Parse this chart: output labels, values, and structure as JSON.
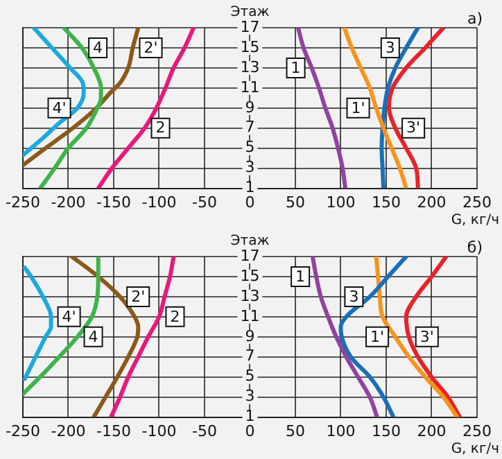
{
  "chart_data": [
    {
      "type": "line",
      "title": "а)",
      "xlabel": "G, кг/ч",
      "ylabel": "Этаж",
      "xlim": [
        -250,
        250
      ],
      "ylim": [
        1,
        17
      ],
      "xticks": [
        -250,
        -200,
        -150,
        -100,
        -50,
        0,
        50,
        100,
        150,
        200,
        250
      ],
      "yticks": [
        1,
        3,
        5,
        7,
        9,
        11,
        13,
        15,
        17
      ],
      "grid": true,
      "legend": false,
      "marker": "none",
      "line_style": "solid",
      "series": [
        {
          "name": "4'",
          "color": "#1ea8e0",
          "x": [
            -238,
            -218,
            -198,
            -184,
            -183,
            -190,
            -210,
            -228,
            -250
          ],
          "values": [
            17,
            15,
            13,
            11.5,
            10.5,
            9,
            7.5,
            6,
            4.3
          ]
        },
        {
          "name": "4",
          "color": "#3cb44a",
          "x": [
            -205,
            -185,
            -172,
            -164,
            -164,
            -168,
            -180,
            -200,
            -215,
            -231
          ],
          "values": [
            17,
            15,
            13,
            11,
            10,
            9,
            7,
            5,
            3,
            1
          ]
        },
        {
          "name": "2'",
          "color": "#8b5a1a",
          "x": [
            -123,
            -129,
            -134,
            -143,
            -154,
            -169,
            -195,
            -225,
            -250
          ],
          "values": [
            17,
            15,
            13,
            11.5,
            10.5,
            9,
            7,
            5,
            3.3
          ]
        },
        {
          "name": "2",
          "color": "#e8197d",
          "x": [
            -62,
            -72,
            -84,
            -93,
            -103,
            -116,
            -134,
            -152,
            -167
          ],
          "values": [
            17,
            15,
            13,
            11,
            9,
            7,
            5,
            3,
            1
          ]
        },
        {
          "name": "1",
          "color": "#8e44a0",
          "x": [
            53,
            59,
            68,
            76,
            83,
            91,
            97,
            102,
            105
          ],
          "values": [
            17,
            15,
            13,
            11,
            9,
            7,
            5,
            3,
            1
          ]
        },
        {
          "name": "1'",
          "color": "#f7941d",
          "x": [
            104,
            112,
            122,
            132,
            139,
            147,
            156,
            165,
            172
          ],
          "values": [
            17,
            15,
            13,
            11,
            9,
            7,
            5,
            3,
            1
          ]
        },
        {
          "name": "3",
          "color": "#1a6fb8",
          "x": [
            185,
            172,
            160,
            152,
            148,
            146,
            145,
            146,
            147
          ],
          "values": [
            17,
            15,
            13,
            11,
            9,
            7,
            5,
            3,
            1
          ]
        },
        {
          "name": "3'",
          "color": "#e8232a",
          "x": [
            213,
            193,
            172,
            157,
            153,
            160,
            172,
            183,
            185
          ],
          "values": [
            17,
            15,
            13,
            11,
            9,
            7,
            5,
            3,
            1
          ]
        }
      ]
    },
    {
      "type": "line",
      "title": "б)",
      "xlabel": "G, кг/ч",
      "ylabel": "Этаж",
      "xlim": [
        -250,
        250
      ],
      "ylim": [
        1,
        17
      ],
      "xticks": [
        -250,
        -200,
        -150,
        -100,
        -50,
        0,
        50,
        100,
        150,
        200,
        250
      ],
      "yticks": [
        1,
        3,
        5,
        7,
        9,
        11,
        13,
        15,
        17
      ],
      "grid": true,
      "legend": false,
      "marker": "none",
      "line_style": "solid",
      "series": [
        {
          "name": "4'",
          "color": "#1ea8e0",
          "x": [
            -248,
            -241,
            -228,
            -219,
            -219,
            -225,
            -236,
            -248
          ],
          "values": [
            15.9,
            15,
            13,
            11,
            10,
            9,
            7,
            4.8
          ]
        },
        {
          "name": "4",
          "color": "#3cb44a",
          "x": [
            -167,
            -167,
            -168,
            -174,
            -190,
            -210,
            -231,
            -250
          ],
          "values": [
            16.8,
            15,
            13,
            11,
            9,
            7,
            5,
            3.3
          ]
        },
        {
          "name": "2'",
          "color": "#8b5a1a",
          "x": [
            -196,
            -167,
            -143,
            -127,
            -123,
            -124,
            -134,
            -146,
            -159,
            -172
          ],
          "values": [
            17,
            15,
            13,
            11,
            10,
            9,
            7,
            5,
            3,
            1
          ]
        },
        {
          "name": "2",
          "color": "#e8197d",
          "x": [
            -84,
            -88,
            -94,
            -100,
            -112,
            -123,
            -134,
            -143,
            -153
          ],
          "values": [
            17,
            15,
            13,
            11,
            9,
            7,
            5,
            3,
            1
          ]
        },
        {
          "name": "1",
          "color": "#8e44a0",
          "x": [
            69,
            73,
            78,
            86,
            95,
            106,
            119,
            132,
            140
          ],
          "values": [
            17,
            15,
            13,
            11,
            9,
            7,
            5,
            3,
            1
          ]
        },
        {
          "name": "3",
          "color": "#1a6fb8",
          "x": [
            172,
            152,
            132,
            106,
            100,
            101,
            111,
            132,
            147,
            158
          ],
          "values": [
            17,
            15,
            13,
            11,
            10,
            9,
            7,
            5,
            3,
            1
          ]
        },
        {
          "name": "1'",
          "color": "#f7941d",
          "x": [
            139,
            141,
            143,
            146,
            160,
            175,
            193,
            213,
            228
          ],
          "values": [
            17,
            15,
            13,
            11,
            9,
            7,
            5,
            3,
            1
          ]
        },
        {
          "name": "3'",
          "color": "#e8232a",
          "x": [
            216,
            200,
            183,
            172,
            175,
            185,
            200,
            218,
            231
          ],
          "values": [
            17,
            15,
            13,
            11,
            9,
            7,
            5,
            3,
            1
          ]
        }
      ]
    }
  ]
}
